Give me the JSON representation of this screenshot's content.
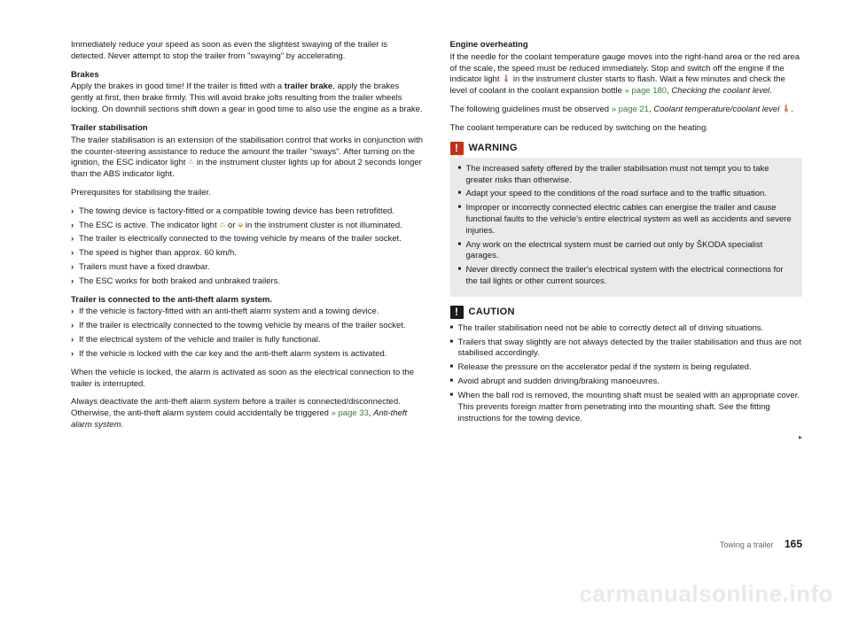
{
  "left": {
    "p1": "Immediately reduce your speed as soon as even the slightest swaying of the trailer is detected. Never attempt to stop the trailer from \"swaying\" by accelerating.",
    "h_brakes": "Brakes",
    "p_brakes_a": "Apply the brakes in good time! If the trailer is fitted with a ",
    "p_brakes_bold": "trailer brake",
    "p_brakes_b": ", apply the brakes gently at first, then brake firmly. This will avoid brake jolts resulting from the trailer wheels locking. On downhill sections shift down a gear in good time to also use the engine as a brake.",
    "h_stab": "Trailer stabilisation",
    "p_stab_a": "The trailer stabilisation is an extension of the stabilisation control that works in conjunction with the counter-steering assistance to reduce the amount the trailer \"sways\". After turning on the ignition, the ESC indicator light ",
    "p_stab_b": " in the instrument cluster lights up for about 2 seconds longer than the ABS indicator light.",
    "p_prereq": "Prerequisites for stabilising the trailer.",
    "prereq_items": {
      "i1": "The towing device is factory-fitted or a compatible towing device has been retrofitted.",
      "i2a": "The ESC is active. The indicator light ",
      "i2b": " or ",
      "i2c": " in the instrument cluster is not illuminated.",
      "i3": "The trailer is electrically connected to the towing vehicle by means of the trailer socket.",
      "i4": "The speed is higher than approx. 60 km/h.",
      "i5": "Trailers must have a fixed drawbar.",
      "i6": "The ESC works for both braked and unbraked trailers."
    },
    "h_alarm": "Trailer is connected to the anti-theft alarm system.",
    "alarm_items": {
      "i1": "If the vehicle is factory-fitted with an anti-theft alarm system and a towing device.",
      "i2": "If the trailer is electrically connected to the towing vehicle by means of the trailer socket.",
      "i3": "If the electrical system of the vehicle and trailer is fully functional.",
      "i4": "If the vehicle is locked with the car key and the anti-theft alarm system is activated."
    },
    "p_alarm1": "When the vehicle is locked, the alarm is activated as soon as the electrical connection to the trailer is interrupted.",
    "p_alarm2a": "Always deactivate the anti-theft alarm system before a trailer is connected/disconnected. Otherwise, the anti-theft alarm system could accidentally be triggered ",
    "p_alarm2_link": "» page 33",
    "p_alarm2b": ", ",
    "p_alarm2_ital": "Anti-theft alarm system",
    "p_alarm2c": "."
  },
  "right": {
    "h_engine": "Engine overheating",
    "p_engine_a": "If the needle for the coolant temperature gauge moves into the right-hand area or the red area of the scale, the speed must be reduced immediately. Stop and switch off the engine if the indicator light ",
    "p_engine_b": " in the instrument cluster starts to flash. Wait a few minutes and check the level of coolant in the coolant expansion bottle ",
    "p_engine_link": "» page 180",
    "p_engine_c": ", ",
    "p_engine_ital": "Checking the coolant level",
    "p_engine_d": ".",
    "p_guide_a": "The following guidelines must be observed ",
    "p_guide_link": "» page 21",
    "p_guide_b": ", ",
    "p_guide_ital": "Coolant temperature/coolant level ",
    "p_guide_c": ".",
    "p_coolant": "The coolant temperature can be reduced by switching on the heating.",
    "warning_title": "WARNING",
    "warning_items": {
      "i1": "The increased safety offered by the trailer stabilisation must not tempt you to take greater risks than otherwise.",
      "i2": "Adapt your speed to the conditions of the road surface and to the traffic situation.",
      "i3": "Improper or incorrectly connected electric cables can energise the trailer and cause functional faults to the vehicle's entire electrical system as well as accidents and severe injuries.",
      "i4": "Any work on the electrical system must be carried out only by ŠKODA specialist garages.",
      "i5": "Never directly connect the trailer's electrical system with the electrical connections for the tail lights or other current sources."
    },
    "caution_title": "CAUTION",
    "caution_items": {
      "i1": "The trailer stabilisation need not be able to correctly detect all of driving situations.",
      "i2": "Trailers that sway slightly are not always detected by the trailer stabilisation and thus are not stabilised accordingly.",
      "i3": "Release the pressure on the accelerator pedal if the system is being regulated.",
      "i4": "Avoid abrupt and sudden driving/braking manoeuvres.",
      "i5": "When the ball rod is removed, the mounting shaft must be sealed with an appropriate cover. This prevents foreign matter from penetrating into the mounting shaft. See the fitting instructions for the towing device."
    }
  },
  "footer": {
    "section": "Towing a trailer",
    "page": "165"
  },
  "watermark": "carmanualsonline.info"
}
